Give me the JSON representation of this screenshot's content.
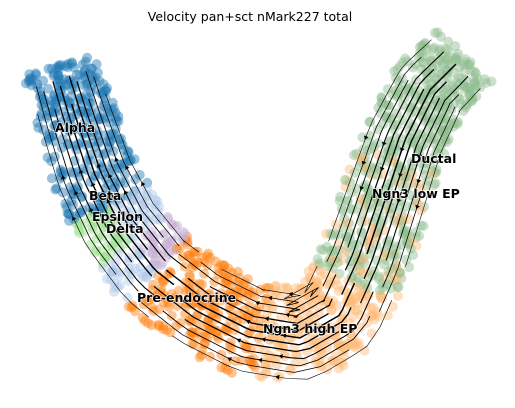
{
  "chart_data": {
    "type": "scatter",
    "subtype": "rna-velocity-embedding-stream",
    "title": "Velocity pan+sct nMark227 total",
    "xlabel": "",
    "ylabel": "",
    "axes_visible": false,
    "grid": false,
    "legend": "on data",
    "clusters": [
      {
        "name": "Alpha",
        "color": "#1f77b4"
      },
      {
        "name": "Beta",
        "color": "#aec7e8"
      },
      {
        "name": "Epsilon",
        "color": "#c5b0d5"
      },
      {
        "name": "Delta",
        "color": "#98df8a"
      },
      {
        "name": "Pre-endocrine",
        "color": "#ff7f0e"
      },
      {
        "name": "Ngn3 high EP",
        "color": "#ffbb78"
      },
      {
        "name": "Ngn3 low EP",
        "color": "#8fbf8f"
      },
      {
        "name": "Ductal",
        "color": "#8fbc8f"
      }
    ],
    "stream_color": "#000000"
  }
}
